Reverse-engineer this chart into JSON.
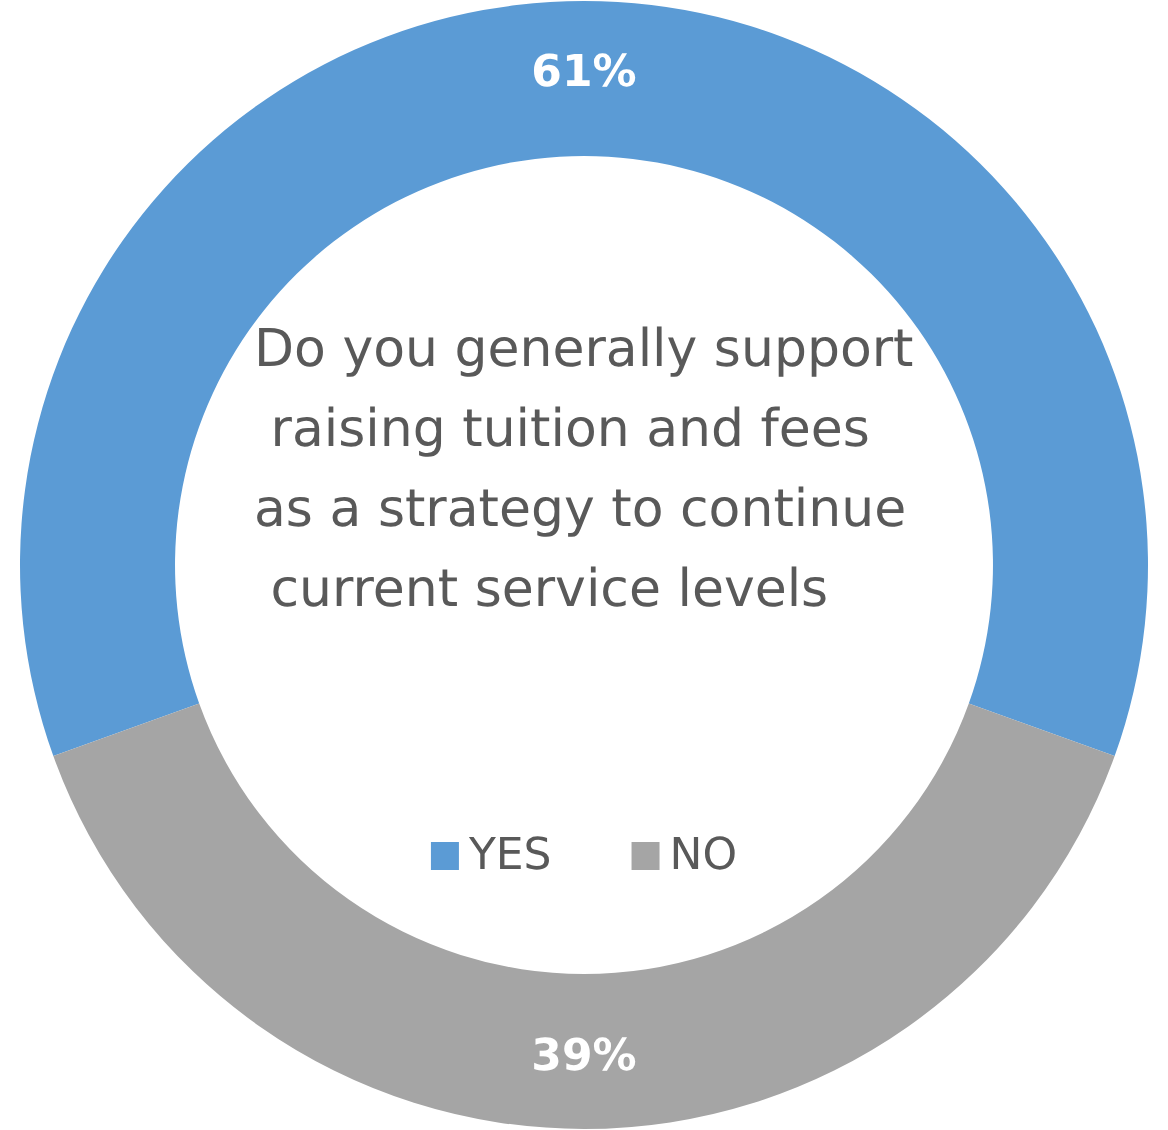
{
  "chart_data": {
    "type": "donut",
    "title": "Do you generally support raising tuition and fees as a strategy to continue current service levels",
    "categories": [
      "YES",
      "NO"
    ],
    "values": [
      61,
      39
    ],
    "colors": [
      "#5b9bd5",
      "#a5a5a5"
    ],
    "value_labels": [
      "61%",
      "39%"
    ],
    "legend": "center"
  }
}
